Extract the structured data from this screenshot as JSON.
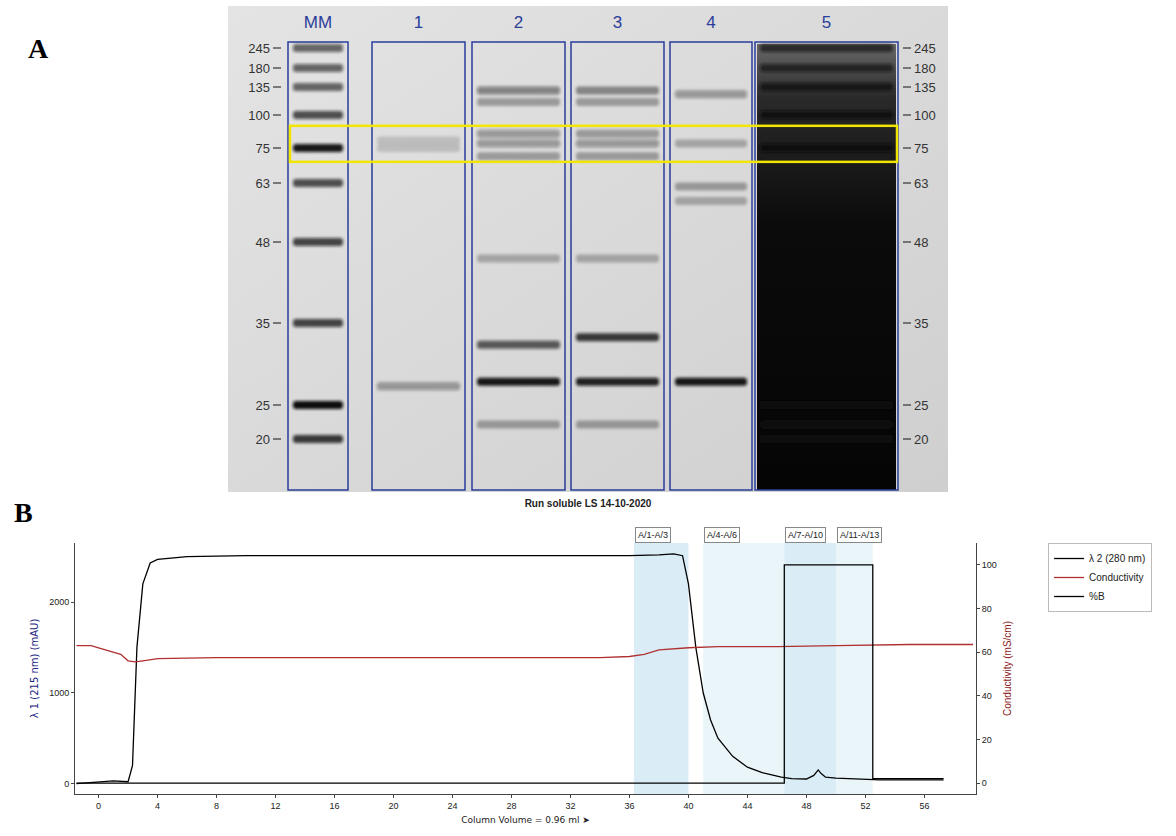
{
  "gel": {
    "panel_label": "A",
    "markers": [
      245,
      180,
      135,
      100,
      75,
      63,
      48,
      35,
      25,
      20
    ],
    "highlight": {
      "top_kda": 91,
      "bottom_kda": 70
    },
    "lanes": [
      {
        "label": "MM",
        "bands": [
          {
            "kda": 245,
            "intensity": 0.6
          },
          {
            "kda": 180,
            "intensity": 0.6
          },
          {
            "kda": 135,
            "intensity": 0.6
          },
          {
            "kda": 100,
            "intensity": 0.7
          },
          {
            "kda": 75,
            "intensity": 0.95
          },
          {
            "kda": 63,
            "intensity": 0.7
          },
          {
            "kda": 48,
            "intensity": 0.75
          },
          {
            "kda": 35,
            "intensity": 0.75
          },
          {
            "kda": 25,
            "intensity": 1
          },
          {
            "kda": 20,
            "intensity": 0.8
          }
        ]
      },
      {
        "label": "1",
        "bands": [
          {
            "kda": 80,
            "intensity": 0.15
          },
          {
            "kda": 75,
            "intensity": 0.15
          },
          {
            "kda": 27,
            "intensity": 0.35
          }
        ]
      },
      {
        "label": "2",
        "bands": [
          {
            "kda": 130,
            "intensity": 0.45
          },
          {
            "kda": 115,
            "intensity": 0.3
          },
          {
            "kda": 85,
            "intensity": 0.35
          },
          {
            "kda": 78,
            "intensity": 0.35
          },
          {
            "kda": 72,
            "intensity": 0.3
          },
          {
            "kda": 45,
            "intensity": 0.25
          },
          {
            "kda": 32,
            "intensity": 0.65
          },
          {
            "kda": 27.5,
            "intensity": 0.95
          },
          {
            "kda": 22,
            "intensity": 0.3
          }
        ]
      },
      {
        "label": "3",
        "bands": [
          {
            "kda": 130,
            "intensity": 0.4
          },
          {
            "kda": 115,
            "intensity": 0.3
          },
          {
            "kda": 85,
            "intensity": 0.3
          },
          {
            "kda": 78,
            "intensity": 0.35
          },
          {
            "kda": 72,
            "intensity": 0.3
          },
          {
            "kda": 45,
            "intensity": 0.25
          },
          {
            "kda": 33,
            "intensity": 0.8
          },
          {
            "kda": 27.5,
            "intensity": 0.9
          },
          {
            "kda": 22,
            "intensity": 0.3
          }
        ]
      },
      {
        "label": "4",
        "bands": [
          {
            "kda": 125,
            "intensity": 0.35
          },
          {
            "kda": 78,
            "intensity": 0.25
          },
          {
            "kda": 62,
            "intensity": 0.3
          },
          {
            "kda": 58,
            "intensity": 0.25
          },
          {
            "kda": 27.5,
            "intensity": 0.95
          }
        ]
      },
      {
        "label": "5",
        "smear": true,
        "bands": [
          {
            "kda": 245,
            "intensity": 0.7
          },
          {
            "kda": 180,
            "intensity": 0.7
          },
          {
            "kda": 135,
            "intensity": 0.8
          },
          {
            "kda": 100,
            "intensity": 0.9
          },
          {
            "kda": 75,
            "intensity": 1
          },
          {
            "kda": 25,
            "intensity": 1
          },
          {
            "kda": 22,
            "intensity": 0.9
          },
          {
            "kda": 20,
            "intensity": 0.8
          }
        ]
      }
    ]
  },
  "chart_data": {
    "panel_label": "B",
    "type": "line",
    "title": "Run soluble LS 14-10-2020",
    "x_label": "Column Volume = 0.96 ml ➤",
    "y_label": "λ 1 (215 nm) (mAU)",
    "y2_label": "Conductivity (mS/cm)",
    "xlim": [
      -1.6,
      59.5
    ],
    "xticks": [
      0,
      4,
      8,
      12,
      16,
      20,
      24,
      28,
      32,
      36,
      40,
      44,
      48,
      52,
      56
    ],
    "ylim": [
      -115,
      2650
    ],
    "yticks": [
      0,
      1000,
      2000
    ],
    "y2lim": [
      -5,
      110
    ],
    "y2ticks": [
      0,
      20,
      40,
      60,
      80,
      100
    ],
    "grid": false,
    "legend": "right",
    "regions": [
      {
        "label": "A/1-A/3",
        "start": 36.3,
        "end": 40
      },
      {
        "label": "A/4-A/6",
        "start": 41,
        "end": 46.5
      },
      {
        "label": "A/7-A/10",
        "start": 46.5,
        "end": 50
      },
      {
        "label": "A/11-A/13",
        "start": 50,
        "end": 52.5
      }
    ],
    "series": [
      {
        "name": "λ 2 (280 nm)",
        "color": "#000000",
        "x": [
          -1.5,
          0,
          1,
          2,
          2.3,
          2.6,
          3,
          3.5,
          4,
          6,
          10,
          20,
          30,
          36,
          38,
          39,
          39.6,
          40,
          40.5,
          41,
          41.5,
          42,
          43,
          44,
          45,
          46,
          46.3,
          47,
          48,
          48.5,
          48.8,
          49,
          49.3,
          50,
          51,
          52,
          52.5,
          53,
          55,
          57.3
        ],
        "values": [
          0,
          15,
          30,
          20,
          200,
          1500,
          2200,
          2430,
          2470,
          2500,
          2510,
          2510,
          2510,
          2510,
          2520,
          2530,
          2510,
          2200,
          1500,
          1000,
          700,
          500,
          300,
          180,
          120,
          80,
          70,
          55,
          50,
          90,
          150,
          110,
          70,
          60,
          55,
          50,
          45,
          40,
          40,
          40
        ]
      },
      {
        "name": "Conductivity",
        "color": "#b03030",
        "axis": "y2",
        "x": [
          -1.5,
          -0.5,
          0,
          0.5,
          1,
          1.5,
          2,
          2.5,
          3,
          4,
          8,
          20,
          34,
          36,
          37,
          38,
          40,
          42,
          46,
          50,
          55,
          59.3
        ],
        "values": [
          63,
          63,
          62,
          61,
          60,
          59,
          56,
          55.5,
          56,
          57,
          57.5,
          57.5,
          57.5,
          58,
          59,
          61,
          62,
          62.5,
          62.5,
          63,
          63.5,
          63.5
        ]
      },
      {
        "name": "%B",
        "color": "#000000",
        "axis": "y2",
        "x": [
          -1.5,
          46.5,
          46.5,
          52.5,
          52.5,
          57.3
        ],
        "values": [
          0,
          0,
          100,
          100,
          2,
          2
        ]
      }
    ]
  }
}
